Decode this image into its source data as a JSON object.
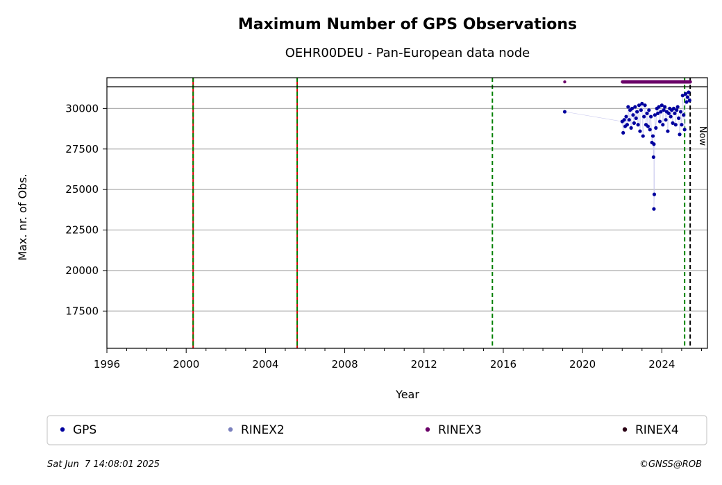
{
  "chart_data": {
    "type": "scatter",
    "title": "Maximum Number of GPS Observations",
    "subtitle": "OEHR00DEU - Pan-European data node",
    "xlabel": "Year",
    "ylabel": "Max. nr. of Obs.",
    "xlim": [
      1996,
      2026.3
    ],
    "ylim": [
      15200,
      31900
    ],
    "x_ticks": [
      "1996",
      "2000",
      "2004",
      "2008",
      "2012",
      "2016",
      "2020",
      "2024"
    ],
    "y_ticks": [
      "17500",
      "20000",
      "22500",
      "25000",
      "27500",
      "30000"
    ],
    "grid": "y",
    "vlines": [
      {
        "x": 2000.35,
        "style": "red-green-dashed"
      },
      {
        "x": 2005.6,
        "style": "red-green-dashed"
      },
      {
        "x": 2015.45,
        "style": "green-dashed"
      },
      {
        "x": 2025.15,
        "style": "green-dashed"
      },
      {
        "x": 2025.43,
        "style": "black-dashed",
        "label": "Now"
      }
    ],
    "rinex3_band_y": 31800,
    "rinex3_points": [
      [
        2019.1,
        31800
      ],
      [
        2022.0,
        31800
      ],
      [
        2022.3,
        31800
      ],
      [
        2022.6,
        31800
      ],
      [
        2022.9,
        31800
      ],
      [
        2023.2,
        31800
      ],
      [
        2023.5,
        31800
      ],
      [
        2023.8,
        31800
      ],
      [
        2024.1,
        31800
      ],
      [
        2024.4,
        31800
      ],
      [
        2024.7,
        31800
      ],
      [
        2025.0,
        31800
      ],
      [
        2025.3,
        31800
      ],
      [
        2025.45,
        31800
      ]
    ],
    "series": [
      {
        "name": "GPS",
        "color": "#00009e",
        "values": [
          [
            2019.1,
            29800
          ],
          [
            2022.0,
            29200
          ],
          [
            2022.05,
            28500
          ],
          [
            2022.1,
            29300
          ],
          [
            2022.15,
            28900
          ],
          [
            2022.2,
            29500
          ],
          [
            2022.25,
            29000
          ],
          [
            2022.3,
            30100
          ],
          [
            2022.35,
            29300
          ],
          [
            2022.4,
            29900
          ],
          [
            2022.45,
            28800
          ],
          [
            2022.5,
            30000
          ],
          [
            2022.55,
            29600
          ],
          [
            2022.6,
            29100
          ],
          [
            2022.65,
            30100
          ],
          [
            2022.7,
            29400
          ],
          [
            2022.75,
            29800
          ],
          [
            2022.8,
            29000
          ],
          [
            2022.85,
            30200
          ],
          [
            2022.9,
            28600
          ],
          [
            2022.95,
            29900
          ],
          [
            2023.0,
            30300
          ],
          [
            2023.05,
            28300
          ],
          [
            2023.1,
            29500
          ],
          [
            2023.15,
            30200
          ],
          [
            2023.2,
            29000
          ],
          [
            2023.25,
            29700
          ],
          [
            2023.3,
            28900
          ],
          [
            2023.35,
            29900
          ],
          [
            2023.4,
            28700
          ],
          [
            2023.45,
            29500
          ],
          [
            2023.5,
            27900
          ],
          [
            2023.55,
            28300
          ],
          [
            2023.58,
            27000
          ],
          [
            2023.6,
            27800
          ],
          [
            2023.62,
            24700
          ],
          [
            2023.6,
            23800
          ],
          [
            2023.65,
            29600
          ],
          [
            2023.7,
            28800
          ],
          [
            2023.75,
            30000
          ],
          [
            2023.8,
            29700
          ],
          [
            2023.85,
            30100
          ],
          [
            2023.9,
            29200
          ],
          [
            2023.95,
            29800
          ],
          [
            2024.0,
            30200
          ],
          [
            2024.05,
            29000
          ],
          [
            2024.1,
            29900
          ],
          [
            2024.15,
            30100
          ],
          [
            2024.2,
            29300
          ],
          [
            2024.25,
            29800
          ],
          [
            2024.3,
            28600
          ],
          [
            2024.35,
            29700
          ],
          [
            2024.4,
            30000
          ],
          [
            2024.45,
            29500
          ],
          [
            2024.5,
            29900
          ],
          [
            2024.55,
            29100
          ],
          [
            2024.6,
            30000
          ],
          [
            2024.65,
            29700
          ],
          [
            2024.7,
            29000
          ],
          [
            2024.75,
            29900
          ],
          [
            2024.8,
            30100
          ],
          [
            2024.85,
            29400
          ],
          [
            2024.9,
            28400
          ],
          [
            2024.95,
            29800
          ],
          [
            2025.0,
            29000
          ],
          [
            2025.05,
            30800
          ],
          [
            2025.1,
            29600
          ],
          [
            2025.15,
            28700
          ],
          [
            2025.2,
            30900
          ],
          [
            2025.25,
            30400
          ],
          [
            2025.3,
            30700
          ],
          [
            2025.35,
            31000
          ],
          [
            2025.4,
            30500
          ]
        ]
      },
      {
        "name": "RINEX2",
        "color": "#7a80bd",
        "values": []
      },
      {
        "name": "RINEX3",
        "color": "#6a0068",
        "values": []
      },
      {
        "name": "RINEX4",
        "color": "#2a0014",
        "values": []
      }
    ],
    "legend_position": "bottom",
    "date_text": "Sat Jun  7 14:08:01 2025",
    "credit_text": "©GNSS@ROB",
    "now_label": "Now"
  }
}
